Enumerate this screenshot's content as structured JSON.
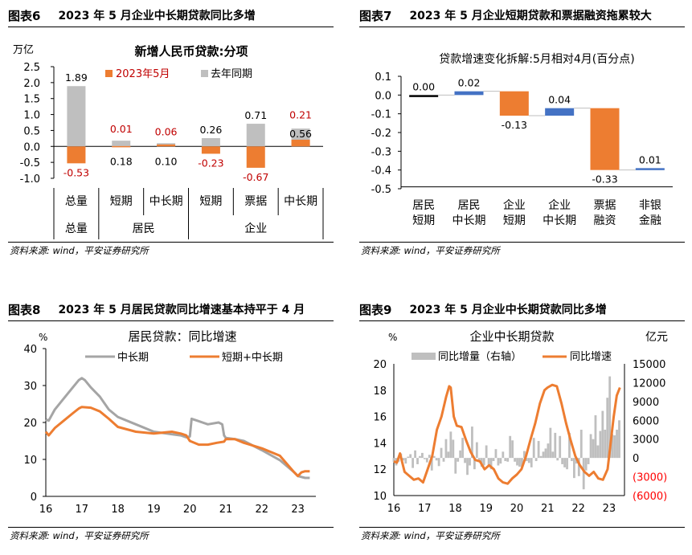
{
  "source_text": "资料来源: wind，平安证券研究所",
  "colors": {
    "orange": "#ed7d31",
    "gray": "#bfbfbf",
    "dark_gray": "#a5a5a5",
    "blue": "#4472c4",
    "red": "#c00000"
  },
  "panels": {
    "fig6": {
      "fig_no": "图表6",
      "heading": "2023 年 5 月企业中长期贷款同比多增"
    },
    "fig7": {
      "fig_no": "图表7",
      "heading": "2023 年 5 月企业短期贷款和票据融资拖累较大"
    },
    "fig8": {
      "fig_no": "图表8",
      "heading": "2023 年 5 月居民贷款同比增速基本持平于 4 月"
    },
    "fig9": {
      "fig_no": "图表9",
      "heading": "2023 年 5 月企业中长期贷款同比多增"
    }
  },
  "chart_data": [
    {
      "type": "bar",
      "title": "新增人民币贷款:分项",
      "ylabel": "万亿",
      "ylim": [
        -1.0,
        2.5
      ],
      "yticks": [
        "2.5",
        "2.0",
        "1.5",
        "1.0",
        "0.5",
        "0.0",
        "-0.5",
        "-1.0"
      ],
      "categories": [
        "总量",
        "短期",
        "中长期",
        "短期",
        "票据",
        "中长期"
      ],
      "groups": [
        {
          "label": "总量"
        },
        {
          "label": "居民"
        },
        {
          "label": "企业"
        }
      ],
      "series": [
        {
          "name": "2023年5月",
          "values": [
            -0.53,
            0.01,
            0.06,
            -0.23,
            -0.67,
            0.21
          ],
          "labels": [
            "-0.53",
            "0.01",
            "0.06",
            "-0.23",
            "-0.67",
            "0.21"
          ]
        },
        {
          "name": "去年同期",
          "values": [
            1.89,
            0.18,
            0.1,
            0.26,
            0.71,
            0.56
          ],
          "labels": [
            "1.89",
            "0.18",
            "0.10",
            "0.26",
            "0.71",
            "0.56"
          ]
        }
      ],
      "legend": "top"
    },
    {
      "type": "bar",
      "title": "贷款增速变化拆解:5月相对4月(百分点)",
      "ylim": [
        -0.5,
        0.1
      ],
      "yticks": [
        "0.1",
        "0.0",
        "-0.1",
        "-0.2",
        "-0.3",
        "-0.4",
        "-0.5"
      ],
      "categories": [
        [
          "居民",
          "短期"
        ],
        [
          "居民",
          "中长期"
        ],
        [
          "企业",
          "短期"
        ],
        [
          "企业",
          "中长期"
        ],
        [
          "票据",
          "融资"
        ],
        [
          "非银",
          "金融"
        ]
      ],
      "values": [
        0.0,
        0.02,
        -0.13,
        0.04,
        -0.33,
        0.01
      ],
      "labels": [
        "0.00",
        "0.02",
        "-0.13",
        "0.04",
        "-0.33",
        "0.01"
      ]
    },
    {
      "type": "line",
      "title": "居民贷款：同比增速",
      "ylabel": "%",
      "ylim": [
        0,
        40
      ],
      "yticks": [
        "40",
        "30",
        "20",
        "10",
        "0"
      ],
      "xticks": [
        "16",
        "17",
        "18",
        "19",
        "20",
        "21",
        "22",
        "23"
      ],
      "xlim": [
        2016.0,
        2023.5
      ],
      "series": [
        {
          "name": "中长期",
          "x": [
            2016.0,
            2016.08,
            2016.25,
            2016.5,
            2016.75,
            2016.92,
            2017.0,
            2017.08,
            2017.25,
            2017.5,
            2017.75,
            2018.0,
            2018.5,
            2019.0,
            2019.5,
            2019.75,
            2019.9,
            2020.0,
            2020.05,
            2020.2,
            2020.5,
            2020.8,
            2020.9,
            2020.95,
            2021.0,
            2021.25,
            2021.5,
            2022.0,
            2022.5,
            2022.9,
            2023.0,
            2023.2,
            2023.33
          ],
          "y": [
            20.8,
            20.5,
            23.5,
            26.5,
            29.5,
            31.5,
            32.0,
            31.5,
            29.5,
            27.0,
            23.5,
            21.5,
            19.5,
            17.5,
            16.8,
            16.5,
            16.0,
            16.2,
            21.0,
            20.5,
            19.5,
            20.0,
            19.5,
            16.5,
            15.8,
            15.5,
            15.0,
            12.5,
            9.8,
            6.5,
            5.5,
            5.0,
            5.0
          ]
        },
        {
          "name": "短期+中长期",
          "x": [
            2016.0,
            2016.08,
            2016.25,
            2016.5,
            2016.75,
            2016.92,
            2017.0,
            2017.25,
            2017.5,
            2017.75,
            2018.0,
            2018.5,
            2019.0,
            2019.5,
            2019.75,
            2019.9,
            2020.0,
            2020.25,
            2020.5,
            2020.75,
            2020.95,
            2021.0,
            2021.25,
            2021.5,
            2022.0,
            2022.5,
            2022.9,
            2023.0,
            2023.1,
            2023.2,
            2023.33
          ],
          "y": [
            17.5,
            16.5,
            18.5,
            20.5,
            22.5,
            23.8,
            24.2,
            24.0,
            23.0,
            21.0,
            18.8,
            17.5,
            17.0,
            17.5,
            17.0,
            16.5,
            15.0,
            14.0,
            14.0,
            14.5,
            14.8,
            15.5,
            15.5,
            14.5,
            13.0,
            11.0,
            6.5,
            5.5,
            6.5,
            6.8,
            6.8
          ]
        }
      ],
      "legend": "top"
    },
    {
      "type": "bar+line",
      "title": "企业中长期贷款",
      "ylabel": "%",
      "y2label": "亿元",
      "ylim": [
        10,
        20
      ],
      "yticks": [
        "20",
        "18",
        "16",
        "14",
        "12",
        "10"
      ],
      "y2lim": [
        -6000,
        15000
      ],
      "y2ticks": [
        "15000",
        "12000",
        "9000",
        "6000",
        "3000",
        "0",
        "(3000)",
        "(6000)"
      ],
      "xticks": [
        "16",
        "17",
        "18",
        "19",
        "20",
        "21",
        "22",
        "23"
      ],
      "xlim": [
        2016.0,
        2023.5
      ],
      "series": [
        {
          "name": "同比增量（右轴）",
          "type": "bar",
          "axis": "right",
          "values": [
            -600,
            -1200,
            -600,
            700,
            -400,
            -900,
            200,
            600,
            -1600,
            1200,
            -1000,
            300,
            800,
            -200,
            -700,
            500,
            -2000,
            300,
            -400,
            -1300,
            1600,
            -600,
            3000,
            1000,
            4200,
            2900,
            -2500,
            -600,
            1200,
            3200,
            -800,
            -2700,
            -1200,
            5000,
            -1800,
            2500,
            -500,
            -1400,
            -1200,
            2000,
            -1300,
            -1800,
            -500,
            1400,
            -1200,
            -900,
            1000,
            -500,
            -600,
            3500,
            2800,
            -600,
            -1200,
            -1400,
            -1600,
            1100,
            -500,
            -800,
            -1500,
            3200,
            -500,
            2700,
            300,
            1000,
            1500,
            2300,
            4800,
            1000,
            4000,
            -400,
            3500,
            -1000,
            -1500,
            -1800,
            4000,
            -500,
            -3200,
            -900,
            -2900,
            4500,
            -5000,
            -2000,
            -1000,
            3800,
            3000,
            6800,
            2000,
            4300,
            7500,
            4500,
            9600,
            13000,
            3800,
            3600,
            4500,
            6000
          ]
        },
        {
          "name": "同比增速",
          "type": "line",
          "axis": "left",
          "x": [
            2016.0,
            2016.1,
            2016.2,
            2016.35,
            2016.5,
            2016.65,
            2016.8,
            2016.95,
            2017.1,
            2017.25,
            2017.4,
            2017.55,
            2017.7,
            2017.8,
            2017.85,
            2017.95,
            2018.05,
            2018.2,
            2018.35,
            2018.5,
            2018.65,
            2018.8,
            2018.95,
            2019.1,
            2019.25,
            2019.4,
            2019.55,
            2019.7,
            2019.85,
            2020.0,
            2020.15,
            2020.3,
            2020.45,
            2020.6,
            2020.75,
            2020.9,
            2021.0,
            2021.15,
            2021.3,
            2021.45,
            2021.6,
            2021.75,
            2021.9,
            2022.05,
            2022.2,
            2022.35,
            2022.5,
            2022.65,
            2022.8,
            2022.95,
            2023.05,
            2023.15,
            2023.25,
            2023.35
          ],
          "y": [
            12.6,
            12.5,
            13.2,
            11.8,
            11.5,
            11.2,
            11.3,
            11.0,
            12.0,
            13.0,
            15.0,
            16.0,
            17.5,
            18.3,
            18.2,
            16.0,
            15.3,
            15.2,
            14.2,
            13.3,
            12.7,
            12.6,
            12.0,
            12.3,
            12.0,
            11.3,
            11.0,
            10.9,
            11.3,
            11.6,
            12.0,
            13.0,
            14.3,
            15.5,
            17.0,
            18.0,
            18.2,
            18.4,
            18.3,
            17.0,
            15.5,
            14.2,
            13.0,
            12.3,
            11.8,
            11.5,
            11.8,
            11.3,
            11.2,
            12.0,
            14.0,
            16.0,
            17.6,
            18.2
          ]
        }
      ],
      "legend": "top"
    }
  ]
}
